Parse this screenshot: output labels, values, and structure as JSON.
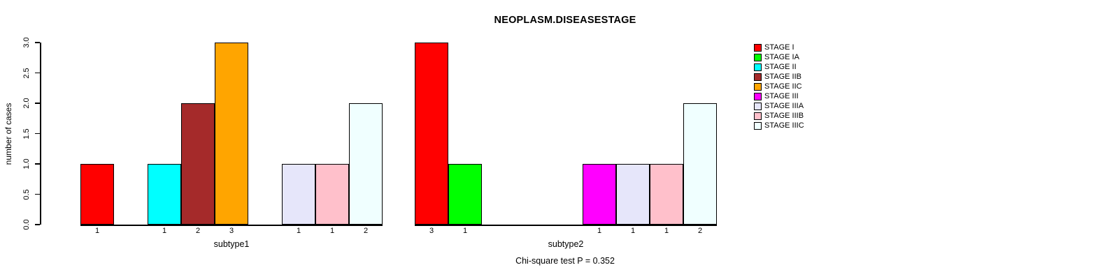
{
  "chart_data": {
    "type": "bar",
    "title": "NEOPLASM.DISEASESTAGE",
    "ylabel": "number of cases",
    "ylim": [
      0,
      3
    ],
    "ytick_labels": [
      "0.0",
      "0.5",
      "1.0",
      "1.5",
      "2.0",
      "2.5",
      "3.0"
    ],
    "grid": "off",
    "legend_position": "right",
    "categories": [
      "STAGE I",
      "STAGE IA",
      "STAGE II",
      "STAGE IIB",
      "STAGE IIC",
      "STAGE III",
      "STAGE IIIA",
      "STAGE IIIB",
      "STAGE IIIC"
    ],
    "legend": [
      {
        "label": "STAGE I",
        "color": "#FF0000"
      },
      {
        "label": "STAGE IA",
        "color": "#00FF00"
      },
      {
        "label": "STAGE II",
        "color": "#00FFFF"
      },
      {
        "label": "STAGE IIB",
        "color": "#A52A2A"
      },
      {
        "label": "STAGE IIC",
        "color": "#FFA500"
      },
      {
        "label": "STAGE III",
        "color": "#FF00FF"
      },
      {
        "label": "STAGE IIIA",
        "color": "#E6E6FA"
      },
      {
        "label": "STAGE IIIB",
        "color": "#FFC0CB"
      },
      {
        "label": "STAGE IIIC",
        "color": "#F0FFFF"
      }
    ],
    "series": [
      {
        "name": "subtype1",
        "values": [
          1,
          0,
          1,
          2,
          3,
          0,
          1,
          1,
          2
        ]
      },
      {
        "name": "subtype2",
        "values": [
          3,
          1,
          0,
          0,
          0,
          1,
          1,
          1,
          2
        ]
      }
    ],
    "bar_value_labels": "shown under each nonzero bar",
    "annotation": "Chi-square test P = 0.352"
  }
}
